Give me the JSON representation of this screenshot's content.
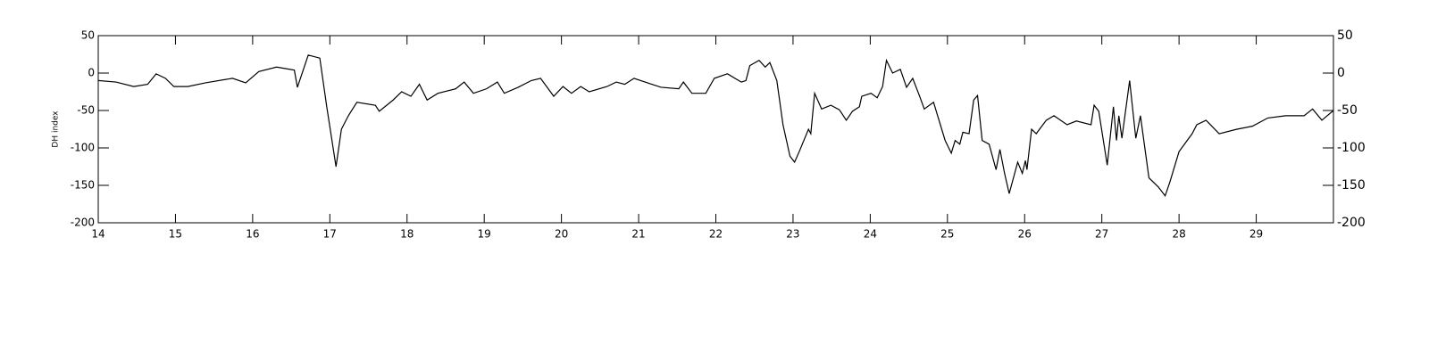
{
  "chart_data": {
    "type": "line",
    "y_label": "DH index",
    "x": [
      14.0,
      14.23,
      14.46,
      14.64,
      14.75,
      14.87,
      14.98,
      15.16,
      15.39,
      15.74,
      15.91,
      16.08,
      16.31,
      16.54,
      16.58,
      16.72,
      16.87,
      16.96,
      17.08,
      17.15,
      17.24,
      17.35,
      17.59,
      17.64,
      17.82,
      17.93,
      18.05,
      18.16,
      18.26,
      18.4,
      18.63,
      18.74,
      18.86,
      19.03,
      19.17,
      19.26,
      19.44,
      19.61,
      19.73,
      19.9,
      20.02,
      20.13,
      20.25,
      20.36,
      20.59,
      20.71,
      20.82,
      20.94,
      21.17,
      21.29,
      21.52,
      21.58,
      21.69,
      21.87,
      21.98,
      22.15,
      22.33,
      22.39,
      22.44,
      22.56,
      22.64,
      22.7,
      22.79,
      22.87,
      22.96,
      23.02,
      23.08,
      23.2,
      23.23,
      23.28,
      23.37,
      23.49,
      23.6,
      23.69,
      23.77,
      23.86,
      23.89,
      24.01,
      24.09,
      24.16,
      24.21,
      24.29,
      24.39,
      24.47,
      24.55,
      24.64,
      24.7,
      24.82,
      24.97,
      25.05,
      25.1,
      25.16,
      25.2,
      25.28,
      25.34,
      25.39,
      25.45,
      25.54,
      25.63,
      25.68,
      25.74,
      25.8,
      25.91,
      25.97,
      26.01,
      26.03,
      26.09,
      26.15,
      26.28,
      26.38,
      26.55,
      26.67,
      26.86,
      26.9,
      26.96,
      27.07,
      27.15,
      27.19,
      27.22,
      27.26,
      27.36,
      27.44,
      27.5,
      27.61,
      27.73,
      27.82,
      27.88,
      28.0,
      28.17,
      28.23,
      28.35,
      28.52,
      28.75,
      28.95,
      29.15,
      29.38,
      29.62,
      29.73,
      29.85,
      30.0
    ],
    "series": [
      {
        "color": "#000000",
        "values": [
          -10,
          -12,
          -18,
          -15,
          -1,
          -7,
          -18,
          -18,
          -13,
          -7,
          -13,
          2,
          8,
          4,
          -19,
          24,
          20,
          -45,
          -125,
          -75,
          -57,
          -39,
          -43,
          -51,
          -36,
          -25,
          -31,
          -15,
          -36,
          -27,
          -21,
          -12,
          -27,
          -21,
          -12,
          -27,
          -19,
          -10,
          -7,
          -31,
          -18,
          -27,
          -18,
          -25,
          -18,
          -12,
          -15,
          -7,
          -15,
          -19,
          -21,
          -12,
          -27,
          -27,
          -7,
          -1,
          -12,
          -10,
          10,
          17,
          8,
          14,
          -10,
          -69,
          -111,
          -119,
          -105,
          -75,
          -81,
          -27,
          -48,
          -43,
          -49,
          -63,
          -51,
          -45,
          -31,
          -27,
          -33,
          -18,
          17,
          0,
          5,
          -19,
          -7,
          -31,
          -48,
          -39,
          -90,
          -107,
          -90,
          -95,
          -79,
          -81,
          -36,
          -30,
          -90,
          -95,
          -129,
          -102,
          -134,
          -161,
          -119,
          -134,
          -117,
          -129,
          -75,
          -81,
          -63,
          -57,
          -69,
          -64,
          -69,
          -43,
          -51,
          -123,
          -45,
          -90,
          -57,
          -87,
          -10,
          -87,
          -57,
          -140,
          -152,
          -164,
          -146,
          -105,
          -81,
          -69,
          -63,
          -81,
          -75,
          -71,
          -60,
          -57,
          -57,
          -48,
          -63,
          -50
        ]
      }
    ],
    "xlim": [
      14,
      30
    ],
    "xticks": [
      14,
      15,
      16,
      17,
      18,
      19,
      20,
      21,
      22,
      23,
      24,
      25,
      26,
      27,
      28,
      29
    ],
    "ylim": [
      -200,
      50
    ],
    "yticks": [
      -200,
      -150,
      -100,
      -50,
      0,
      50
    ]
  }
}
